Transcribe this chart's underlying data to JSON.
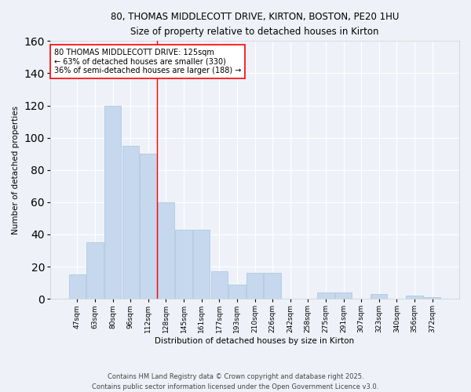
{
  "title_line1": "80, THOMAS MIDDLECOTT DRIVE, KIRTON, BOSTON, PE20 1HU",
  "title_line2": "Size of property relative to detached houses in Kirton",
  "xlabel": "Distribution of detached houses by size in Kirton",
  "ylabel": "Number of detached properties",
  "bar_labels": [
    "47sqm",
    "63sqm",
    "80sqm",
    "96sqm",
    "112sqm",
    "128sqm",
    "145sqm",
    "161sqm",
    "177sqm",
    "193sqm",
    "210sqm",
    "226sqm",
    "242sqm",
    "258sqm",
    "275sqm",
    "291sqm",
    "307sqm",
    "323sqm",
    "340sqm",
    "356sqm",
    "372sqm"
  ],
  "bar_values": [
    15,
    35,
    120,
    95,
    90,
    60,
    43,
    43,
    17,
    9,
    16,
    16,
    0,
    0,
    4,
    4,
    0,
    3,
    0,
    2,
    1
  ],
  "bar_color": "#c5d8ed",
  "bar_edge_color": "#a8c4de",
  "vline_x_index": 5,
  "vline_color": "red",
  "annotation_text": "80 THOMAS MIDDLECOTT DRIVE: 125sqm\n← 63% of detached houses are smaller (330)\n36% of semi-detached houses are larger (188) →",
  "annotation_box_color": "white",
  "annotation_box_edge": "red",
  "ylim": [
    0,
    160
  ],
  "yticks": [
    0,
    20,
    40,
    60,
    80,
    100,
    120,
    140,
    160
  ],
  "bg_color": "#eef2f8",
  "grid_color": "#ffffff",
  "footer_line1": "Contains HM Land Registry data © Crown copyright and database right 2025.",
  "footer_line2": "Contains public sector information licensed under the Open Government Licence v3.0."
}
